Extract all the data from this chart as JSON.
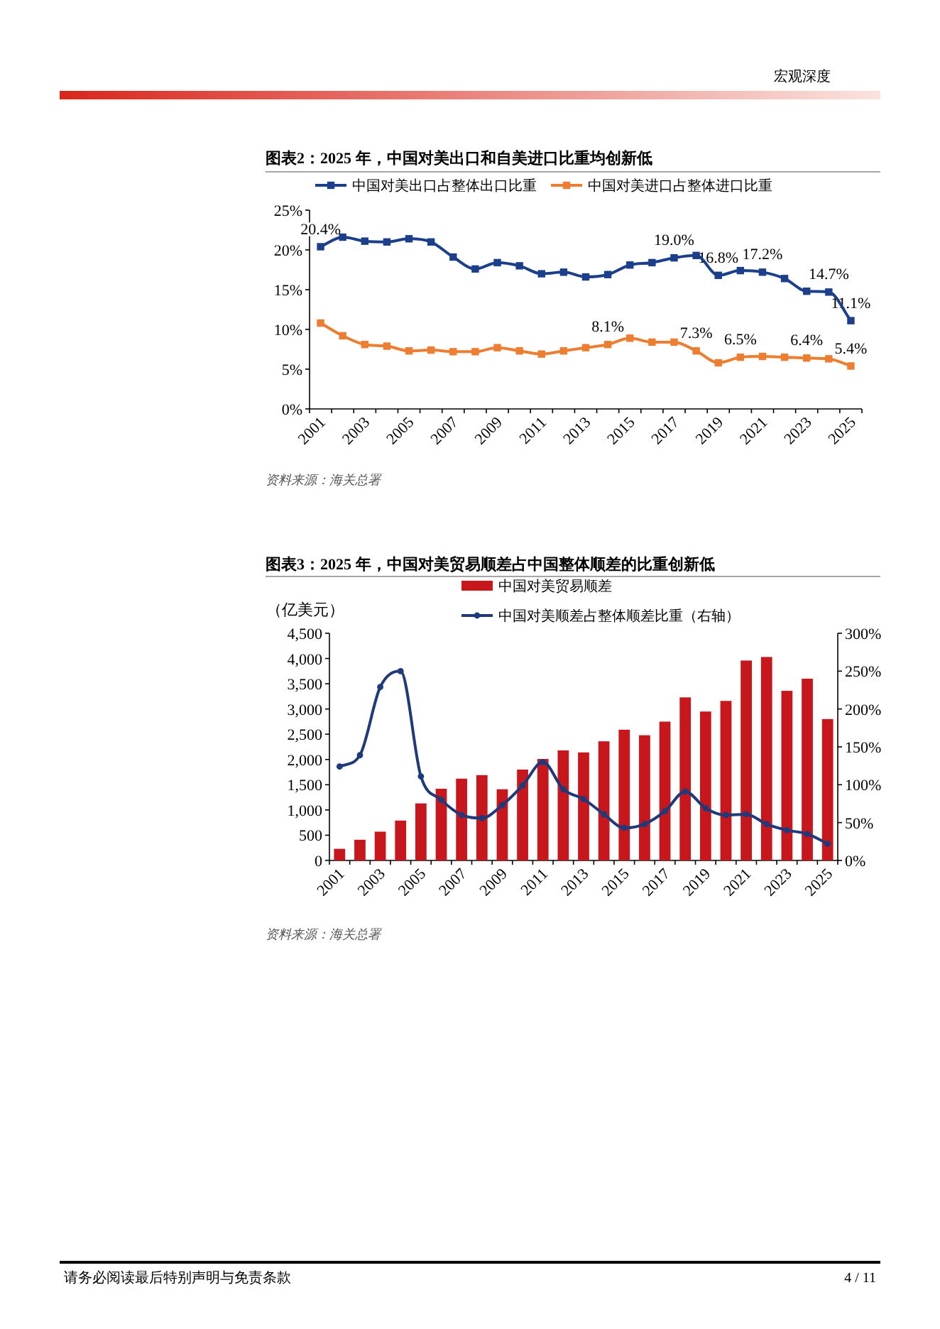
{
  "chart_data": [
    {
      "type": "line",
      "title": "图表2：2025 年，中国对美出口和自美进口比重均创新低",
      "categories": [
        "2001",
        null,
        "2003",
        null,
        "2005",
        null,
        "2007",
        null,
        "2009",
        null,
        "2011",
        null,
        "2013",
        null,
        "2015",
        null,
        "2017",
        null,
        "2019",
        null,
        "2021",
        null,
        "2023",
        null,
        "2025"
      ],
      "series": [
        {
          "name": "中国对美出口占整体出口比重",
          "color": "#1b3f8b",
          "values": [
            20.4,
            21.6,
            21.1,
            21.0,
            21.4,
            21.0,
            19.1,
            17.6,
            18.4,
            18.0,
            17.0,
            17.2,
            16.6,
            16.9,
            18.1,
            18.4,
            19.0,
            19.3,
            16.8,
            17.4,
            17.2,
            16.4,
            14.8,
            14.7,
            11.1
          ],
          "value_labels": [
            "20.4%",
            null,
            null,
            null,
            null,
            null,
            null,
            null,
            null,
            null,
            null,
            null,
            null,
            null,
            null,
            null,
            "19.0%",
            null,
            "16.8%",
            null,
            "17.2%",
            null,
            null,
            "14.7%",
            "11.1%"
          ]
        },
        {
          "name": "中国对美进口占整体进口比重",
          "color": "#ed7d31",
          "values": [
            10.8,
            9.2,
            8.1,
            7.9,
            7.3,
            7.4,
            7.2,
            7.2,
            7.7,
            7.3,
            6.9,
            7.3,
            7.7,
            8.1,
            8.9,
            8.4,
            8.4,
            7.3,
            5.8,
            6.5,
            6.6,
            6.5,
            6.4,
            6.3,
            5.4
          ],
          "value_labels": [
            null,
            null,
            null,
            null,
            null,
            null,
            null,
            null,
            null,
            null,
            null,
            null,
            null,
            "8.1%",
            null,
            null,
            null,
            "7.3%",
            null,
            "6.5%",
            null,
            null,
            "6.4%",
            null,
            "5.4%"
          ]
        }
      ],
      "ylim": [
        0,
        25
      ],
      "yticks": [
        {
          "value": 0,
          "label": "0%"
        },
        {
          "value": 5,
          "label": "5%"
        },
        {
          "value": 10,
          "label": "10%"
        },
        {
          "value": 15,
          "label": "15%"
        },
        {
          "value": 20,
          "label": "20%"
        },
        {
          "value": 25,
          "label": "25%"
        }
      ],
      "marker": "square",
      "legend": "top",
      "annotations": [
        "资料来源：海关总署",
        "宏观深度"
      ]
    },
    {
      "type": "bar",
      "title": "图表3：2025 年，中国对美贸易顺差占中国整体顺差的比重创新低",
      "ylabel": "（亿美元）",
      "categories": [
        "2001",
        null,
        "2003",
        null,
        "2005",
        null,
        "2007",
        null,
        "2009",
        null,
        "2011",
        null,
        "2013",
        null,
        "2015",
        null,
        "2017",
        null,
        "2019",
        null,
        "2021",
        null,
        "2023",
        null,
        "2025"
      ],
      "series": [
        {
          "name": "中国对美贸易顺差",
          "color": "#c8161d",
          "values": [
            230,
            410,
            570,
            790,
            1130,
            1420,
            1620,
            1690,
            1410,
            1800,
            2010,
            2180,
            2140,
            2360,
            2590,
            2480,
            2750,
            3230,
            2950,
            3160,
            3960,
            4030,
            3360,
            3600,
            2800
          ]
        },
        {
          "name": "中国对美顺差占整体顺差比重（右轴）",
          "type": "line",
          "axis": "y2",
          "color": "#1f3a7a",
          "values": [
            124,
            139,
            229,
            250,
            111,
            80,
            60,
            56,
            73,
            99,
            130,
            94,
            81,
            61,
            43,
            48,
            65,
            91,
            69,
            60,
            61,
            48,
            40,
            35,
            22
          ]
        }
      ],
      "ylim": [
        0,
        4500
      ],
      "yticks": [
        0,
        500,
        {
          "value": 1000,
          "label": "1,000"
        },
        {
          "value": 1500,
          "label": "1,500"
        },
        {
          "value": 2000,
          "label": "2,000"
        },
        {
          "value": 2500,
          "label": "2,500"
        },
        {
          "value": 3000,
          "label": "3,000"
        },
        {
          "value": 3500,
          "label": "3,500"
        },
        {
          "value": 4000,
          "label": "4,000"
        },
        {
          "value": 4500,
          "label": "4,500"
        }
      ],
      "y2lim": [
        0,
        300
      ],
      "y2ticks": [
        {
          "value": 0,
          "label": "0%"
        },
        {
          "value": 50,
          "label": "50%"
        },
        {
          "value": 100,
          "label": "100%"
        },
        {
          "value": 150,
          "label": "150%"
        },
        {
          "value": 200,
          "label": "200%"
        },
        {
          "value": 250,
          "label": "250%"
        },
        {
          "value": 300,
          "label": "300%"
        }
      ],
      "marker": "circle",
      "legend": "top",
      "annotations": [
        "资料来源：海关总署",
        "请务必阅读最后特别声明与免责条款",
        "4 / 11"
      ]
    }
  ]
}
